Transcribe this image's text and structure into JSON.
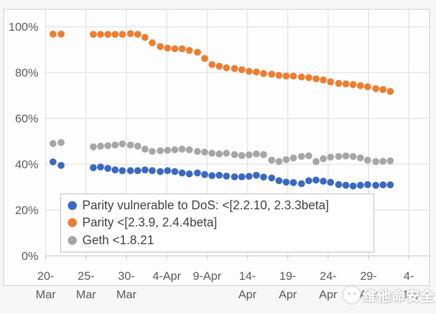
{
  "watermark": {
    "text": "维他命安全",
    "logo": "chick-logo"
  },
  "colors": {
    "blue_series": "#3b68c0",
    "orange_series": "#ed7d31",
    "gray_series": "#a6a6a6",
    "gridline": "#dcdcdc",
    "axis_line": "#c0c0c0",
    "axis_text": "#595959",
    "legend_text": "#404040"
  },
  "chart_data": {
    "type": "scatter",
    "title": "",
    "xlabel": "",
    "ylabel": "",
    "grid": true,
    "legend_position": "inside-bottom-left",
    "y_axis": {
      "tick_labels": [
        "0%",
        "20%",
        "40%",
        "60%",
        "80%",
        "100%"
      ],
      "tick_values": [
        0,
        20,
        40,
        60,
        80,
        100
      ],
      "display_max": 107.8
    },
    "x_axis": {
      "unit": "days since 20-Mar",
      "range_days": [
        0,
        47.7
      ],
      "ticks": [
        {
          "line1": "20-",
          "line2": "Mar",
          "day": 0
        },
        {
          "line1": "25-",
          "line2": "Mar",
          "day": 5
        },
        {
          "line1": "30-",
          "line2": "Mar",
          "day": 10
        },
        {
          "line1": "4-Apr",
          "line2": "",
          "day": 15
        },
        {
          "line1": "9-Apr",
          "line2": "",
          "day": 20
        },
        {
          "line1": "14-",
          "line2": "Apr",
          "day": 25
        },
        {
          "line1": "19-",
          "line2": "Apr",
          "day": 30
        },
        {
          "line1": "24-",
          "line2": "Apr",
          "day": 35
        },
        {
          "line1": "29-",
          "line2": "Apr",
          "day": 40
        },
        {
          "line1": "4-",
          "line2": "May",
          "day": 45
        }
      ]
    },
    "x_days": [
      0.9,
      1.9,
      5.9,
      6.8,
      7.7,
      8.6,
      9.5,
      10.5,
      11.4,
      12.3,
      13.2,
      14.2,
      15.1,
      16.0,
      16.9,
      17.8,
      18.8,
      19.7,
      20.6,
      21.5,
      22.4,
      23.4,
      24.3,
      25.2,
      26.1,
      27.0,
      28.0,
      28.9,
      29.8,
      30.7,
      31.7,
      32.6,
      33.5,
      34.4,
      35.3,
      36.3,
      37.2,
      38.1,
      39.0,
      39.9,
      40.9,
      41.8,
      42.7
    ],
    "series": [
      {
        "name": "Parity vulnerable to DoS: <[2.2.10, 2.3.3beta]",
        "color": "#3b68c0",
        "values": [
          41.0,
          39.5,
          38.5,
          38.8,
          38.2,
          37.5,
          37.2,
          37.2,
          37.2,
          37.5,
          37.2,
          36.8,
          37.2,
          36.8,
          36.2,
          35.8,
          36.2,
          35.5,
          35.0,
          35.2,
          34.8,
          34.5,
          34.5,
          34.7,
          35.2,
          34.4,
          34.0,
          32.8,
          32.2,
          32.0,
          31.5,
          32.8,
          33.1,
          32.6,
          32.1,
          31.1,
          30.8,
          30.5,
          30.8,
          31.1,
          30.8,
          31.0,
          31.0
        ]
      },
      {
        "name": "Parity <[2.3.9, 2.4.4beta]",
        "color": "#ed7d31",
        "values": [
          96.8,
          96.8,
          96.7,
          96.7,
          96.7,
          96.7,
          96.7,
          97.0,
          96.7,
          95.4,
          93.0,
          91.4,
          90.7,
          90.4,
          90.4,
          89.7,
          88.9,
          86.2,
          83.5,
          82.8,
          82.1,
          81.8,
          81.3,
          80.6,
          80.3,
          79.6,
          79.3,
          78.8,
          78.5,
          78.5,
          78.1,
          77.8,
          77.3,
          76.8,
          76.0,
          75.3,
          75.1,
          74.8,
          74.3,
          73.8,
          73.0,
          72.6,
          71.8
        ]
      },
      {
        "name": "Geth <1.8.21",
        "color": "#a6a6a6",
        "values": [
          49.0,
          49.5,
          47.6,
          47.9,
          48.1,
          48.4,
          48.9,
          48.4,
          47.9,
          46.6,
          45.6,
          45.9,
          46.1,
          46.3,
          46.6,
          46.3,
          45.6,
          45.3,
          44.8,
          44.5,
          44.8,
          44.2,
          43.8,
          44.1,
          44.5,
          44.2,
          41.8,
          41.2,
          42.0,
          42.7,
          43.4,
          43.7,
          41.2,
          42.4,
          43.1,
          43.4,
          43.6,
          43.4,
          42.8,
          41.8,
          41.2,
          41.3,
          41.5
        ]
      }
    ]
  }
}
